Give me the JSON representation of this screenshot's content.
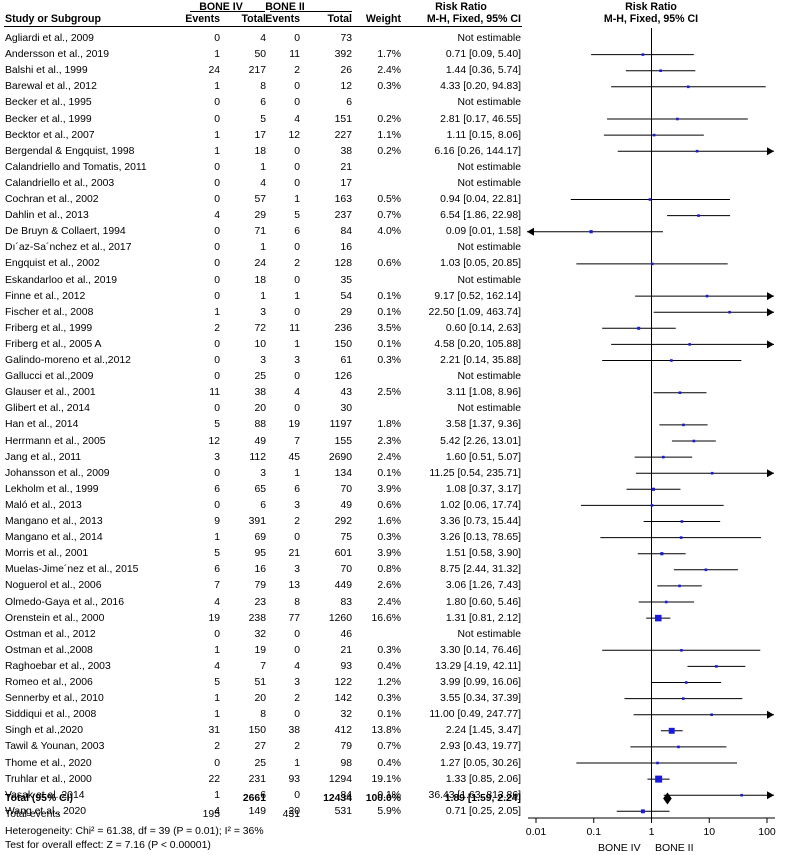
{
  "headers": {
    "group1": "BONE IV",
    "group2": "BONE II",
    "risk_ratio": "Risk Ratio",
    "study": "Study or Subgroup",
    "events": "Events",
    "total": "Total",
    "weight": "Weight",
    "method": "M-H, Fixed, 95% CI"
  },
  "chart_data": {
    "type": "forest",
    "title": "Risk Ratio",
    "subtitle": "M-H, Fixed, 95% CI",
    "x_scale": "log",
    "xlim": [
      0.01,
      100
    ],
    "x_ticks": [
      0.01,
      0.1,
      1,
      10,
      100
    ],
    "x_tick_labels": [
      "0.01",
      "0.1",
      "1",
      "10",
      "100"
    ],
    "favours_left": "BONE IV",
    "favours_right": "BONE II",
    "studies": [
      {
        "name": "Agliardi et al., 2009",
        "e1": "0",
        "t1": "4",
        "e2": "0",
        "t2": "73",
        "weight": "",
        "ci": "Not estimable",
        "rr": null,
        "lo": null,
        "hi": null
      },
      {
        "name": "Andersson et al., 2019",
        "e1": "1",
        "t1": "50",
        "e2": "11",
        "t2": "392",
        "weight": "1.7%",
        "ci": "0.71 [0.09, 5.40]",
        "rr": 0.71,
        "lo": 0.09,
        "hi": 5.4
      },
      {
        "name": "Balshi et al., 1999",
        "e1": "24",
        "t1": "217",
        "e2": "2",
        "t2": "26",
        "weight": "2.4%",
        "ci": "1.44 [0.36, 5.74]",
        "rr": 1.44,
        "lo": 0.36,
        "hi": 5.74
      },
      {
        "name": "Barewal et al., 2012",
        "e1": "1",
        "t1": "8",
        "e2": "0",
        "t2": "12",
        "weight": "0.3%",
        "ci": "4.33 [0.20, 94.83]",
        "rr": 4.33,
        "lo": 0.2,
        "hi": 94.83
      },
      {
        "name": "Becker et al., 1995",
        "e1": "0",
        "t1": "6",
        "e2": "0",
        "t2": "6",
        "weight": "",
        "ci": "Not estimable",
        "rr": null,
        "lo": null,
        "hi": null
      },
      {
        "name": "Becker et al., 1999",
        "e1": "0",
        "t1": "5",
        "e2": "4",
        "t2": "151",
        "weight": "0.2%",
        "ci": "2.81 [0.17, 46.55]",
        "rr": 2.81,
        "lo": 0.17,
        "hi": 46.55
      },
      {
        "name": "Becktor et al., 2007",
        "e1": "1",
        "t1": "17",
        "e2": "12",
        "t2": "227",
        "weight": "1.1%",
        "ci": "1.11 [0.15, 8.06]",
        "rr": 1.11,
        "lo": 0.15,
        "hi": 8.06
      },
      {
        "name": "Bergendal & Engquist, 1998",
        "e1": "1",
        "t1": "18",
        "e2": "0",
        "t2": "38",
        "weight": "0.2%",
        "ci": "6.16 [0.26, 144.17]",
        "rr": 6.16,
        "lo": 0.26,
        "hi": 144.17
      },
      {
        "name": "Calandriello and Tomatis, 2011",
        "e1": "0",
        "t1": "1",
        "e2": "0",
        "t2": "21",
        "weight": "",
        "ci": "Not estimable",
        "rr": null,
        "lo": null,
        "hi": null
      },
      {
        "name": "Calandriello et al., 2003",
        "e1": "0",
        "t1": "4",
        "e2": "0",
        "t2": "17",
        "weight": "",
        "ci": "Not estimable",
        "rr": null,
        "lo": null,
        "hi": null
      },
      {
        "name": "Cochran et al., 2002",
        "e1": "0",
        "t1": "57",
        "e2": "1",
        "t2": "163",
        "weight": "0.5%",
        "ci": "0.94 [0.04, 22.81]",
        "rr": 0.94,
        "lo": 0.04,
        "hi": 22.81
      },
      {
        "name": "Dahlin et al., 2013",
        "e1": "4",
        "t1": "29",
        "e2": "5",
        "t2": "237",
        "weight": "0.7%",
        "ci": "6.54 [1.86, 22.98]",
        "rr": 6.54,
        "lo": 1.86,
        "hi": 22.98
      },
      {
        "name": "De Bruyn & Collaert, 1994",
        "e1": "0",
        "t1": "71",
        "e2": "6",
        "t2": "84",
        "weight": "4.0%",
        "ci": "0.09 [0.01, 1.58]",
        "rr": 0.09,
        "lo": 0.01,
        "hi": 1.58
      },
      {
        "name": "Dı´az-Sa´nchez et al., 2017",
        "e1": "0",
        "t1": "1",
        "e2": "0",
        "t2": "16",
        "weight": "",
        "ci": "Not estimable",
        "rr": null,
        "lo": null,
        "hi": null
      },
      {
        "name": "Engquist et al., 2002",
        "e1": "0",
        "t1": "24",
        "e2": "2",
        "t2": "128",
        "weight": "0.6%",
        "ci": "1.03 [0.05, 20.85]",
        "rr": 1.03,
        "lo": 0.05,
        "hi": 20.85
      },
      {
        "name": "Eskandarloo et al., 2019",
        "e1": "0",
        "t1": "18",
        "e2": "0",
        "t2": "35",
        "weight": "",
        "ci": "Not estimable",
        "rr": null,
        "lo": null,
        "hi": null
      },
      {
        "name": "Finne et al., 2012",
        "e1": "0",
        "t1": "1",
        "e2": "1",
        "t2": "54",
        "weight": "0.1%",
        "ci": "9.17 [0.52, 162.14]",
        "rr": 9.17,
        "lo": 0.52,
        "hi": 162.14
      },
      {
        "name": "Fischer et al., 2008",
        "e1": "1",
        "t1": "3",
        "e2": "0",
        "t2": "29",
        "weight": "0.1%",
        "ci": "22.50 [1.09, 463.74]",
        "rr": 22.5,
        "lo": 1.09,
        "hi": 463.74
      },
      {
        "name": "Friberg et al., 1999",
        "e1": "2",
        "t1": "72",
        "e2": "11",
        "t2": "236",
        "weight": "3.5%",
        "ci": "0.60 [0.14, 2.63]",
        "rr": 0.6,
        "lo": 0.14,
        "hi": 2.63
      },
      {
        "name": "Friberg et al., 2005 A",
        "e1": "0",
        "t1": "10",
        "e2": "1",
        "t2": "150",
        "weight": "0.1%",
        "ci": "4.58 [0.20, 105.88]",
        "rr": 4.58,
        "lo": 0.2,
        "hi": 105.88
      },
      {
        "name": "Galindo-moreno et al.,2012",
        "e1": "0",
        "t1": "3",
        "e2": "3",
        "t2": "61",
        "weight": "0.3%",
        "ci": "2.21 [0.14, 35.88]",
        "rr": 2.21,
        "lo": 0.14,
        "hi": 35.88
      },
      {
        "name": "Gallucci et al.,2009",
        "e1": "0",
        "t1": "25",
        "e2": "0",
        "t2": "126",
        "weight": "",
        "ci": "Not estimable",
        "rr": null,
        "lo": null,
        "hi": null
      },
      {
        "name": "Glauser et al., 2001",
        "e1": "11",
        "t1": "38",
        "e2": "4",
        "t2": "43",
        "weight": "2.5%",
        "ci": "3.11 [1.08, 8.96]",
        "rr": 3.11,
        "lo": 1.08,
        "hi": 8.96
      },
      {
        "name": "Glibert et al., 2014",
        "e1": "0",
        "t1": "20",
        "e2": "0",
        "t2": "30",
        "weight": "",
        "ci": "Not estimable",
        "rr": null,
        "lo": null,
        "hi": null
      },
      {
        "name": "Han et al., 2014",
        "e1": "5",
        "t1": "88",
        "e2": "19",
        "t2": "1197",
        "weight": "1.8%",
        "ci": "3.58 [1.37, 9.36]",
        "rr": 3.58,
        "lo": 1.37,
        "hi": 9.36
      },
      {
        "name": "Herrmann et al., 2005",
        "e1": "12",
        "t1": "49",
        "e2": "7",
        "t2": "155",
        "weight": "2.3%",
        "ci": "5.42 [2.26, 13.01]",
        "rr": 5.42,
        "lo": 2.26,
        "hi": 13.01
      },
      {
        "name": "Jang et al., 2011",
        "e1": "3",
        "t1": "112",
        "e2": "45",
        "t2": "2690",
        "weight": "2.4%",
        "ci": "1.60 [0.51, 5.07]",
        "rr": 1.6,
        "lo": 0.51,
        "hi": 5.07
      },
      {
        "name": "Johansson et al., 2009",
        "e1": "0",
        "t1": "3",
        "e2": "1",
        "t2": "134",
        "weight": "0.1%",
        "ci": "11.25 [0.54, 235.71]",
        "rr": 11.25,
        "lo": 0.54,
        "hi": 235.71
      },
      {
        "name": "Lekholm et al., 1999",
        "e1": "6",
        "t1": "65",
        "e2": "6",
        "t2": "70",
        "weight": "3.9%",
        "ci": "1.08 [0.37, 3.17]",
        "rr": 1.08,
        "lo": 0.37,
        "hi": 3.17
      },
      {
        "name": "Maló et al., 2013",
        "e1": "0",
        "t1": "6",
        "e2": "3",
        "t2": "49",
        "weight": "0.6%",
        "ci": "1.02 [0.06, 17.74]",
        "rr": 1.02,
        "lo": 0.06,
        "hi": 17.74
      },
      {
        "name": "Mangano et al., 2013",
        "e1": "9",
        "t1": "391",
        "e2": "2",
        "t2": "292",
        "weight": "1.6%",
        "ci": "3.36 [0.73, 15.44]",
        "rr": 3.36,
        "lo": 0.73,
        "hi": 15.44
      },
      {
        "name": "Mangano et al., 2014",
        "e1": "1",
        "t1": "69",
        "e2": "0",
        "t2": "75",
        "weight": "0.3%",
        "ci": "3.26 [0.13, 78.65]",
        "rr": 3.26,
        "lo": 0.13,
        "hi": 78.65
      },
      {
        "name": "Morris et al., 2001",
        "e1": "5",
        "t1": "95",
        "e2": "21",
        "t2": "601",
        "weight": "3.9%",
        "ci": "1.51 [0.58, 3.90]",
        "rr": 1.51,
        "lo": 0.58,
        "hi": 3.9
      },
      {
        "name": "Muelas-Jime´nez et al., 2015",
        "e1": "6",
        "t1": "16",
        "e2": "3",
        "t2": "70",
        "weight": "0.8%",
        "ci": "8.75 [2.44, 31.32]",
        "rr": 8.75,
        "lo": 2.44,
        "hi": 31.32
      },
      {
        "name": "Noguerol et al., 2006",
        "e1": "7",
        "t1": "79",
        "e2": "13",
        "t2": "449",
        "weight": "2.6%",
        "ci": "3.06 [1.26, 7.43]",
        "rr": 3.06,
        "lo": 1.26,
        "hi": 7.43
      },
      {
        "name": "Olmedo-Gaya et al., 2016",
        "e1": "4",
        "t1": "23",
        "e2": "8",
        "t2": "83",
        "weight": "2.4%",
        "ci": "1.80 [0.60, 5.46]",
        "rr": 1.8,
        "lo": 0.6,
        "hi": 5.46
      },
      {
        "name": "Orenstein et al., 2000",
        "e1": "19",
        "t1": "238",
        "e2": "77",
        "t2": "1260",
        "weight": "16.6%",
        "ci": "1.31 [0.81, 2.12]",
        "rr": 1.31,
        "lo": 0.81,
        "hi": 2.12
      },
      {
        "name": "Ostman et al., 2012",
        "e1": "0",
        "t1": "32",
        "e2": "0",
        "t2": "46",
        "weight": "",
        "ci": "Not estimable",
        "rr": null,
        "lo": null,
        "hi": null
      },
      {
        "name": "Ostman et al.,2008",
        "e1": "1",
        "t1": "19",
        "e2": "0",
        "t2": "21",
        "weight": "0.3%",
        "ci": "3.30 [0.14, 76.46]",
        "rr": 3.3,
        "lo": 0.14,
        "hi": 76.46
      },
      {
        "name": "Raghoebar et al., 2003",
        "e1": "4",
        "t1": "7",
        "e2": "4",
        "t2": "93",
        "weight": "0.4%",
        "ci": "13.29 [4.19, 42.11]",
        "rr": 13.29,
        "lo": 4.19,
        "hi": 42.11
      },
      {
        "name": "Romeo et al., 2006",
        "e1": "5",
        "t1": "51",
        "e2": "3",
        "t2": "122",
        "weight": "1.2%",
        "ci": "3.99 [0.99, 16.06]",
        "rr": 3.99,
        "lo": 0.99,
        "hi": 16.06
      },
      {
        "name": "Sennerby et al., 2010",
        "e1": "1",
        "t1": "20",
        "e2": "2",
        "t2": "142",
        "weight": "0.3%",
        "ci": "3.55 [0.34, 37.39]",
        "rr": 3.55,
        "lo": 0.34,
        "hi": 37.39
      },
      {
        "name": "Siddiqui et al., 2008",
        "e1": "1",
        "t1": "8",
        "e2": "0",
        "t2": "32",
        "weight": "0.1%",
        "ci": "11.00 [0.49, 247.77]",
        "rr": 11.0,
        "lo": 0.49,
        "hi": 247.77
      },
      {
        "name": "Singh et al.,2020",
        "e1": "31",
        "t1": "150",
        "e2": "38",
        "t2": "412",
        "weight": "13.8%",
        "ci": "2.24 [1.45, 3.47]",
        "rr": 2.24,
        "lo": 1.45,
        "hi": 3.47
      },
      {
        "name": "Tawil & Younan, 2003",
        "e1": "2",
        "t1": "27",
        "e2": "2",
        "t2": "79",
        "weight": "0.7%",
        "ci": "2.93 [0.43, 19.77]",
        "rr": 2.93,
        "lo": 0.43,
        "hi": 19.77
      },
      {
        "name": "Thome et al., 2020",
        "e1": "0",
        "t1": "25",
        "e2": "1",
        "t2": "98",
        "weight": "0.4%",
        "ci": "1.27 [0.05, 30.26]",
        "rr": 1.27,
        "lo": 0.05,
        "hi": 30.26
      },
      {
        "name": "Truhlar et al., 2000",
        "e1": "22",
        "t1": "231",
        "e2": "93",
        "t2": "1294",
        "weight": "19.1%",
        "ci": "1.33 [0.85, 2.06]",
        "rr": 1.33,
        "lo": 0.85,
        "hi": 2.06
      },
      {
        "name": "Vasak et al.,2014",
        "e1": "1",
        "t1": "6",
        "e2": "0",
        "t2": "84",
        "weight": "0.1%",
        "ci": "36.43 [1.63, 813.86]",
        "rr": 36.43,
        "lo": 1.63,
        "hi": 813.86
      },
      {
        "name": "Wang et al., 2020",
        "e1": "4",
        "t1": "149",
        "e2": "20",
        "t2": "531",
        "weight": "5.9%",
        "ci": "0.71 [0.25, 2.05]",
        "rr": 0.71,
        "lo": 0.25,
        "hi": 2.05
      }
    ],
    "total": {
      "label": "Total (95% CI)",
      "t1": "2661",
      "t2": "12434",
      "weight": "100.0%",
      "ci": "1.89 [1.59, 2.24]",
      "rr": 1.89,
      "lo": 1.59,
      "hi": 2.24
    },
    "total_events": {
      "label": "Total events",
      "e1": "195",
      "e2": "431"
    },
    "heterogeneity": "Heterogeneity: Chi² = 61.38, df = 39 (P = 0.01); I² = 36%",
    "overall_effect": "Test for overall effect: Z = 7.16 (P < 0.00001)",
    "colors": {
      "marker": "#1a1adc",
      "line": "#000000"
    }
  }
}
